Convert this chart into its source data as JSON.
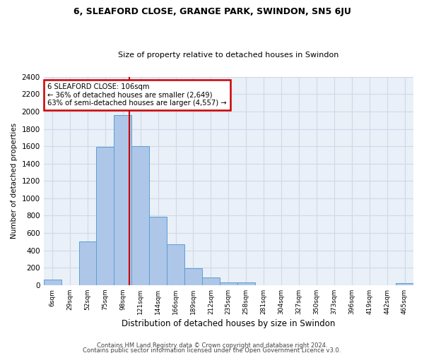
{
  "title": "6, SLEAFORD CLOSE, GRANGE PARK, SWINDON, SN5 6JU",
  "subtitle": "Size of property relative to detached houses in Swindon",
  "xlabel": "Distribution of detached houses by size in Swindon",
  "ylabel": "Number of detached properties",
  "categories": [
    "6sqm",
    "29sqm",
    "52sqm",
    "75sqm",
    "98sqm",
    "121sqm",
    "144sqm",
    "166sqm",
    "189sqm",
    "212sqm",
    "235sqm",
    "258sqm",
    "281sqm",
    "304sqm",
    "327sqm",
    "350sqm",
    "373sqm",
    "396sqm",
    "419sqm",
    "442sqm",
    "465sqm"
  ],
  "values": [
    60,
    0,
    500,
    1590,
    1960,
    1600,
    790,
    470,
    195,
    90,
    35,
    30,
    0,
    0,
    0,
    0,
    0,
    0,
    0,
    0,
    25
  ],
  "bar_color": "#aec6e8",
  "bar_edge_color": "#5a9fd4",
  "red_line_bin": 4.35,
  "annotation_text": "6 SLEAFORD CLOSE: 106sqm\n← 36% of detached houses are smaller (2,649)\n63% of semi-detached houses are larger (4,557) →",
  "annotation_box_color": "#cc0000",
  "grid_color": "#d0d8e8",
  "background_color": "#eaf0f8",
  "ylim": [
    0,
    2400
  ],
  "yticks": [
    0,
    200,
    400,
    600,
    800,
    1000,
    1200,
    1400,
    1600,
    1800,
    2000,
    2200,
    2400
  ],
  "footer1": "Contains HM Land Registry data © Crown copyright and database right 2024.",
  "footer2": "Contains public sector information licensed under the Open Government Licence v3.0."
}
